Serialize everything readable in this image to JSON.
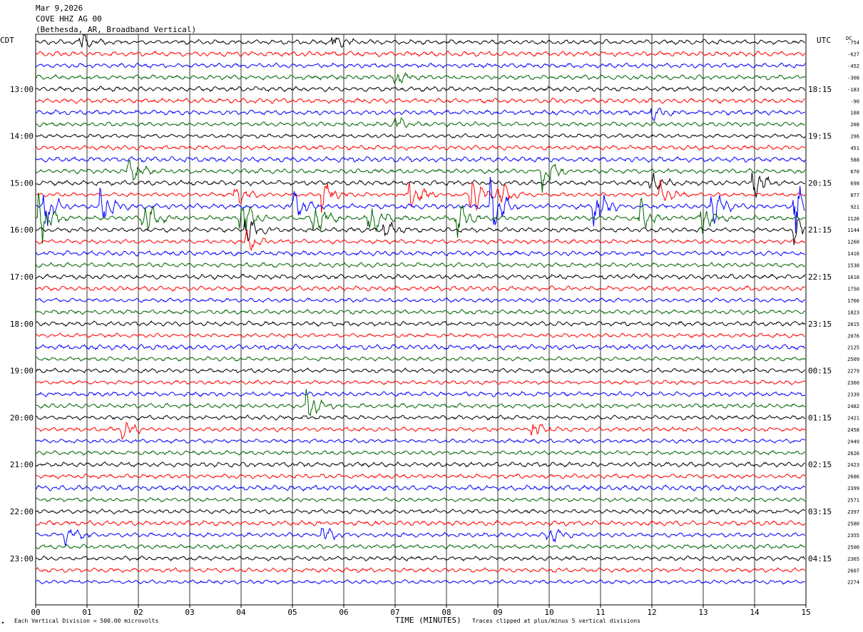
{
  "header": {
    "date": "Mar 9,2026",
    "station": "COVE HHZ AG 00",
    "location": "(Bethesda, AR, Broadband Vertical)"
  },
  "footer": {
    "scale_note": "Each Vertical Division =  500.00 microvolts",
    "clip_note": "Traces clipped at plus/minus 5 vertical divisions",
    "corner_mark": "▸"
  },
  "chart_data": {
    "type": "line",
    "title": "Mar 9,2026",
    "xlabel": "TIME (MINUTES)",
    "left_axis_label": "CDT",
    "right_axis_label": "UTC",
    "dc_label": "DC",
    "xlim": [
      0,
      15
    ],
    "x_ticks": [
      "00",
      "01",
      "02",
      "03",
      "04",
      "05",
      "06",
      "07",
      "08",
      "09",
      "10",
      "11",
      "12",
      "13",
      "14",
      "15"
    ],
    "trace_colors": [
      "#000000",
      "#ff0000",
      "#0000ff",
      "#006400"
    ],
    "cdt_hour_labels": [
      "13:00",
      "14:00",
      "15:00",
      "16:00",
      "17:00",
      "18:00",
      "19:00",
      "20:00",
      "21:00",
      "22:00",
      "23:00"
    ],
    "utc_hour_labels": [
      "18:15",
      "19:15",
      "20:15",
      "21:15",
      "22:15",
      "23:15",
      "00:15",
      "01:15",
      "02:15",
      "03:15",
      "04:15"
    ],
    "dc_offsets": [
      "-754",
      "-627",
      "-452",
      "-308",
      "-183",
      "-90",
      "108",
      "208",
      "296",
      "451",
      "588",
      "670",
      "698",
      "877",
      "921",
      "1126",
      "1144",
      "1260",
      "1416",
      "1538",
      "1610",
      "1750",
      "1766",
      "1823",
      "2015",
      "2076",
      "2125",
      "2509",
      "2279",
      "2360",
      "2339",
      "2482",
      "2421",
      "2458",
      "2449",
      "2626",
      "2423",
      "2686",
      "2399",
      "2571",
      "2397",
      "2580",
      "2355",
      "2500",
      "2365",
      "2607",
      "2274"
    ],
    "events": [
      {
        "trace": 0,
        "minute": 0.9,
        "amp": 1.5
      },
      {
        "trace": 0,
        "minute": 5.8,
        "amp": 1.4
      },
      {
        "trace": 3,
        "minute": 7.0,
        "amp": 1.2
      },
      {
        "trace": 6,
        "minute": 12.0,
        "amp": 1.2
      },
      {
        "trace": 7,
        "minute": 7.0,
        "amp": 1.3
      },
      {
        "trace": 11,
        "minute": 1.8,
        "amp": 2.5
      },
      {
        "trace": 11,
        "minute": 9.9,
        "amp": 3.0
      },
      {
        "trace": 12,
        "minute": 14.0,
        "amp": 2.2
      },
      {
        "trace": 12,
        "minute": 12.0,
        "amp": 1.5
      },
      {
        "trace": 13,
        "minute": 5.6,
        "amp": 2.5
      },
      {
        "trace": 13,
        "minute": 7.3,
        "amp": 3.0
      },
      {
        "trace": 13,
        "minute": 8.5,
        "amp": 3.0
      },
      {
        "trace": 13,
        "minute": 9.0,
        "amp": 2.5
      },
      {
        "trace": 13,
        "minute": 12.2,
        "amp": 2.0
      },
      {
        "trace": 13,
        "minute": 3.9,
        "amp": 2.0
      },
      {
        "trace": 14,
        "minute": 0.2,
        "amp": 3.5
      },
      {
        "trace": 14,
        "minute": 1.3,
        "amp": 3.0
      },
      {
        "trace": 14,
        "minute": 5.0,
        "amp": 3.0
      },
      {
        "trace": 14,
        "minute": 8.9,
        "amp": 5.0
      },
      {
        "trace": 14,
        "minute": 10.9,
        "amp": 4.0
      },
      {
        "trace": 14,
        "minute": 13.2,
        "amp": 2.5
      },
      {
        "trace": 14,
        "minute": 14.8,
        "amp": 5.0
      },
      {
        "trace": 15,
        "minute": 0.1,
        "amp": 4.0
      },
      {
        "trace": 15,
        "minute": 2.1,
        "amp": 3.5
      },
      {
        "trace": 15,
        "minute": 4.0,
        "amp": 4.0
      },
      {
        "trace": 15,
        "minute": 5.4,
        "amp": 4.0
      },
      {
        "trace": 15,
        "minute": 6.5,
        "amp": 3.0
      },
      {
        "trace": 15,
        "minute": 8.2,
        "amp": 3.0
      },
      {
        "trace": 15,
        "minute": 11.8,
        "amp": 2.5
      },
      {
        "trace": 15,
        "minute": 13.0,
        "amp": 2.5
      },
      {
        "trace": 16,
        "minute": 4.1,
        "amp": 2.5
      },
      {
        "trace": 16,
        "minute": 6.8,
        "amp": 1.5
      },
      {
        "trace": 16,
        "minute": 14.8,
        "amp": 2.0
      },
      {
        "trace": 17,
        "minute": 4.1,
        "amp": 1.8
      },
      {
        "trace": 31,
        "minute": 5.3,
        "amp": 3.0
      },
      {
        "trace": 33,
        "minute": 1.7,
        "amp": 1.8
      },
      {
        "trace": 33,
        "minute": 9.7,
        "amp": 1.5
      },
      {
        "trace": 42,
        "minute": 0.6,
        "amp": 1.8
      },
      {
        "trace": 42,
        "minute": 5.6,
        "amp": 1.6
      },
      {
        "trace": 42,
        "minute": 10.0,
        "amp": 1.5
      }
    ]
  }
}
